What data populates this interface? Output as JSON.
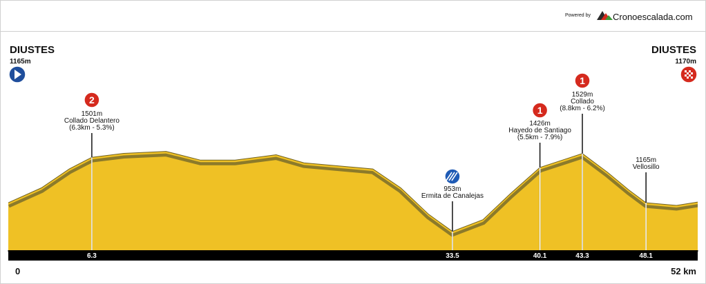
{
  "chart_data": {
    "type": "area",
    "powered_by": "Powered by",
    "brand": "Cronoescalada.com",
    "color": "#efc125",
    "shadow_color": "#8c7a2a",
    "start": {
      "name": "DIUSTES",
      "elevation": 1165,
      "elevation_label": "1165m",
      "color": "#1f4e9c"
    },
    "finish": {
      "name": "DIUSTES",
      "elevation": 1170,
      "elevation_label": "1170m",
      "color": "#d52a1e"
    },
    "x": [
      0,
      2.5,
      4.6,
      6.3,
      8.7,
      11.9,
      14.5,
      17.1,
      20.2,
      22.3,
      27.5,
      29.6,
      31.7,
      33.5,
      35.8,
      37.9,
      40.1,
      42.1,
      43.3,
      45.2,
      46.8,
      48.1,
      50.4,
      52
    ],
    "values": [
      1165,
      1275,
      1415,
      1501,
      1530,
      1545,
      1480,
      1480,
      1520,
      1460,
      1415,
      1275,
      1080,
      953,
      1040,
      1235,
      1426,
      1490,
      1529,
      1390,
      1260,
      1165,
      1145,
      1170
    ],
    "xlim": [
      0,
      52
    ],
    "ylim": [
      814,
      2460
    ],
    "xticks": [
      0,
      6.3,
      33.5,
      40.1,
      43.3,
      48.1,
      {
        "value": 52,
        "label": "52 km"
      }
    ],
    "points": [
      {
        "x": 6.3,
        "elevation": 1501,
        "elevation_label": "1501m",
        "name": "Collado Delantero",
        "detail": "(6.3km - 5.3%)",
        "badge": "2",
        "badge_color": "#d52a1e"
      },
      {
        "x": 33.5,
        "elevation": 953,
        "elevation_label": "953m",
        "name": "Ermita de Canalejas",
        "badge_color": "#1f5bb5"
      },
      {
        "x": 40.1,
        "elevation": 1426,
        "elevation_label": "1426m",
        "name": "Hayedo de Santiago",
        "detail": "(5.5km - 7.9%)",
        "badge": "1",
        "badge_color": "#d52a1e"
      },
      {
        "x": 43.3,
        "elevation": 1529,
        "elevation_label": "1529m",
        "name": "Collado",
        "detail": "(8.8km - 6.2%)",
        "badge": "1",
        "badge_color": "#d52a1e"
      },
      {
        "x": 48.1,
        "elevation": 1165,
        "elevation_label": "1165m",
        "name": "Vellosillo"
      }
    ]
  }
}
